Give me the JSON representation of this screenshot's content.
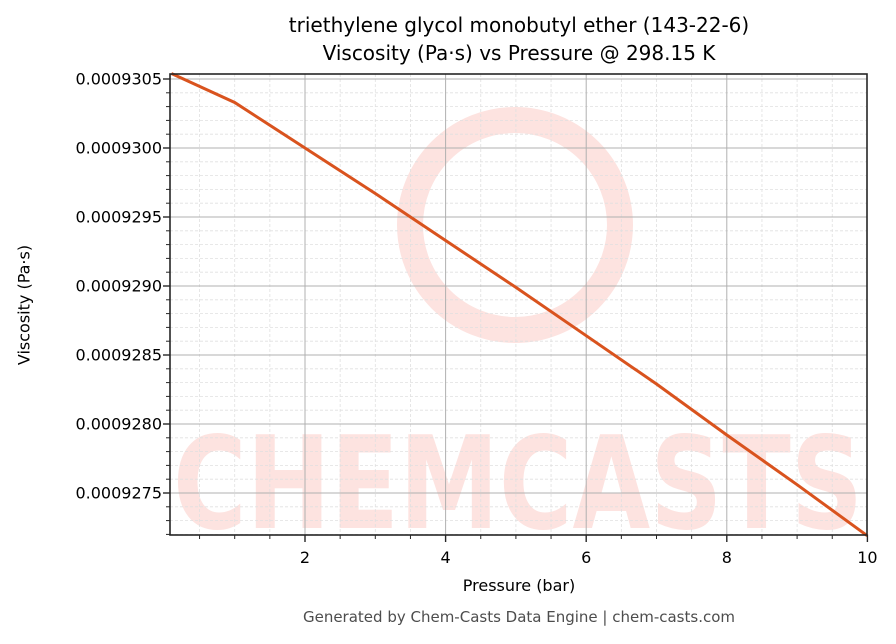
{
  "header": {
    "title_line1": "triethylene glycol monobutyl ether (143-22-6)",
    "title_line2": "Viscosity (Pa·s) vs Pressure @ 298.15 K"
  },
  "axes": {
    "xlabel": "Pressure (bar)",
    "ylabel": "Viscosity (Pa·s)",
    "xticks": [
      "2",
      "4",
      "6",
      "8",
      "10"
    ],
    "yticks": [
      "0.0009305",
      "0.0009300",
      "0.0009295",
      "0.0009290",
      "0.0009285",
      "0.0009280",
      "0.0009275"
    ]
  },
  "watermark": {
    "text": "CHEMCASTS",
    "color": "#fde3e0"
  },
  "footer": {
    "text": "Generated by Chem-Casts Data Engine | chem-casts.com"
  },
  "colors": {
    "line": "#d9531e",
    "grid_major": "#b0b0b0",
    "grid_minor": "#e0e0e0",
    "axis": "#262626"
  },
  "chart_data": {
    "type": "line",
    "title": "triethylene glycol monobutyl ether (143-22-6) Viscosity (Pa·s) vs Pressure @ 298.15 K",
    "xlabel": "Pressure (bar)",
    "ylabel": "Viscosity (Pa·s)",
    "xlim": [
      0.1,
      10
    ],
    "ylim": [
      0.00092718,
      0.00093055
    ],
    "grid": "major and minor",
    "legend": "none",
    "series": [
      {
        "name": "Viscosity",
        "x": [
          0.1,
          1,
          2,
          3,
          4,
          5,
          6,
          7,
          8,
          9,
          10
        ],
        "values": [
          0.00093054,
          0.00093033,
          0.00093,
          0.00092967,
          0.00092933,
          0.00092899,
          0.00092864,
          0.00092829,
          0.00092792,
          0.00092756,
          0.00092719
        ]
      }
    ]
  }
}
